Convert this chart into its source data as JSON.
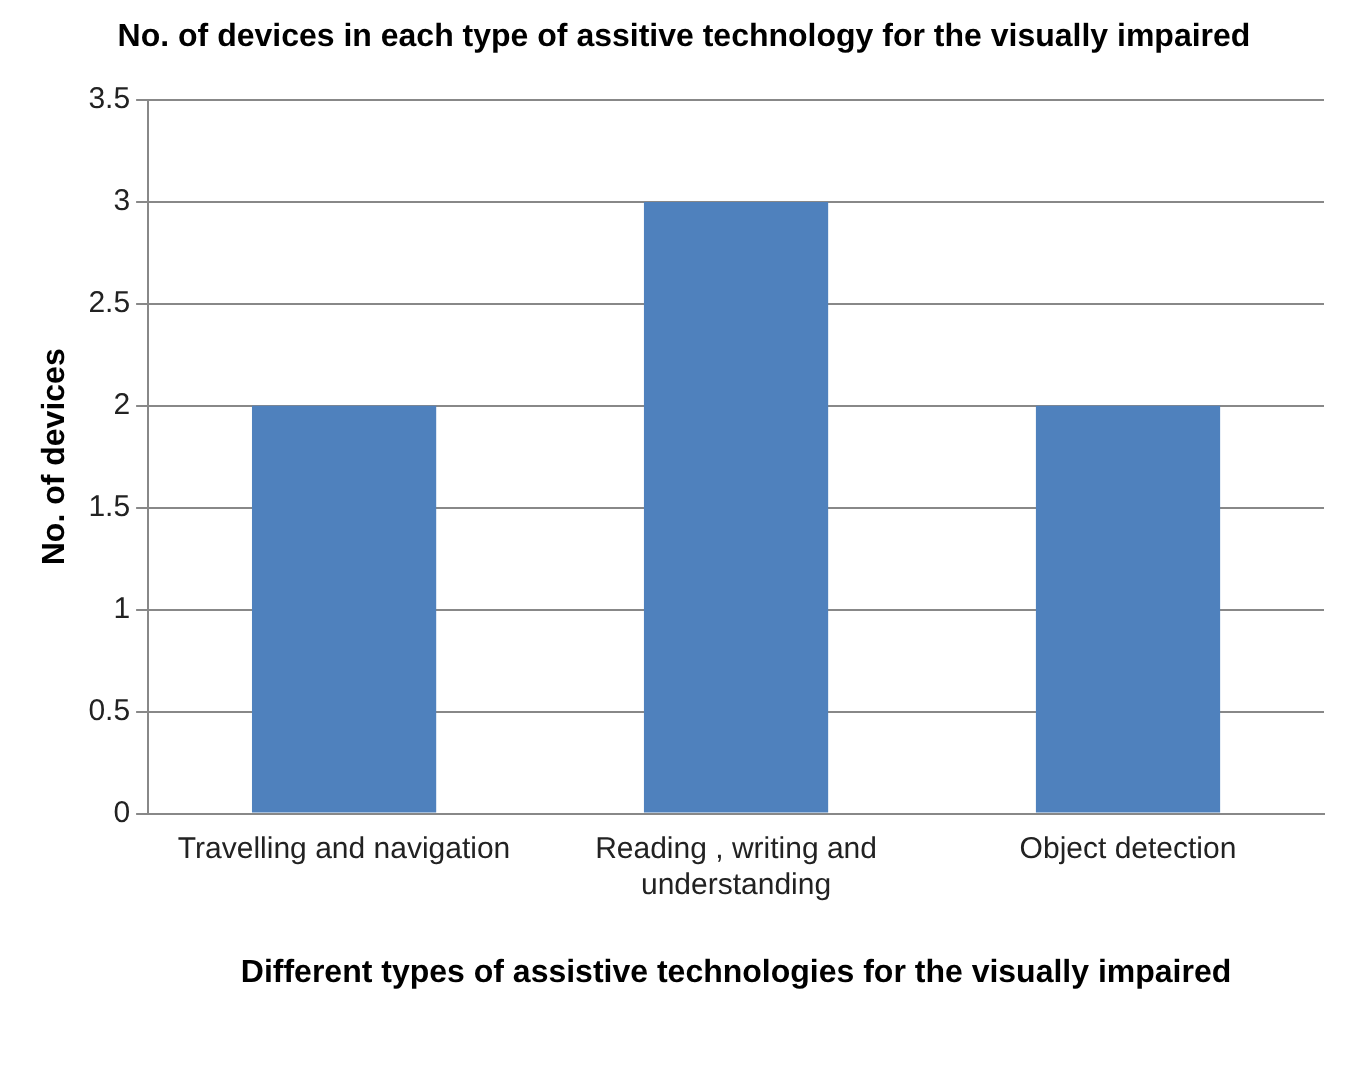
{
  "chart_data": {
    "type": "bar",
    "title": "No. of devices in each type of assitive technology for the visually impaired",
    "xlabel": "Different types of assistive technologies for the visually impaired",
    "ylabel": "No. of devices",
    "categories": [
      "Travelling and navigation",
      "Reading , writing and understanding",
      "Object detection"
    ],
    "values": [
      2,
      3,
      2
    ],
    "color": "#4f81bd",
    "ylim": [
      0,
      3.5
    ],
    "yticks": [
      0,
      0.5,
      1,
      1.5,
      2,
      2.5,
      3,
      3.5
    ],
    "grid": "y",
    "legend": false
  }
}
